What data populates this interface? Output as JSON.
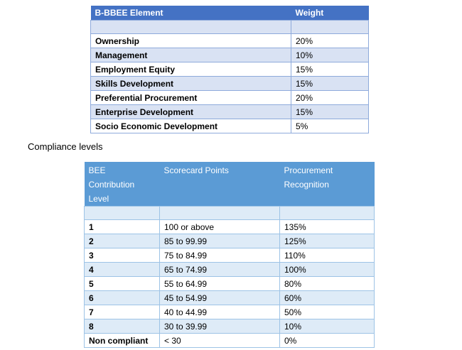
{
  "table1": {
    "headers": [
      "B-BBEE Element",
      "Weight"
    ],
    "rows": [
      [
        "Ownership",
        "20%"
      ],
      [
        "Management",
        "10%"
      ],
      [
        "Employment Equity",
        "15%"
      ],
      [
        "Skills Development",
        "15%"
      ],
      [
        "Preferential Procurement",
        "20%"
      ],
      [
        "Enterprise Development",
        "15%"
      ],
      [
        "Socio Economic Development",
        "5%"
      ]
    ]
  },
  "caption": "Compliance levels",
  "table2": {
    "headers": [
      "BEE Contribution Level",
      "Scorecard Points",
      "Procurement Recognition"
    ],
    "rows": [
      [
        "1",
        "100 or above",
        "135%"
      ],
      [
        "2",
        "85 to 99.99",
        "125%"
      ],
      [
        "3",
        "75 to 84.99",
        "110%"
      ],
      [
        "4",
        "65 to 74.99",
        "100%"
      ],
      [
        "5",
        "55 to 64.99",
        "80%"
      ],
      [
        "6",
        "45 to 54.99",
        "60%"
      ],
      [
        "7",
        "40 to 44.99",
        "50%"
      ],
      [
        "8",
        "30 to 39.99",
        "10%"
      ],
      [
        "Non compliant",
        "< 30",
        "0%"
      ]
    ]
  },
  "colors": {
    "table1_header": "#4472c4",
    "table1_band": "#d9e2f3",
    "table2_header": "#5b9bd5",
    "table2_band": "#deebf7"
  }
}
